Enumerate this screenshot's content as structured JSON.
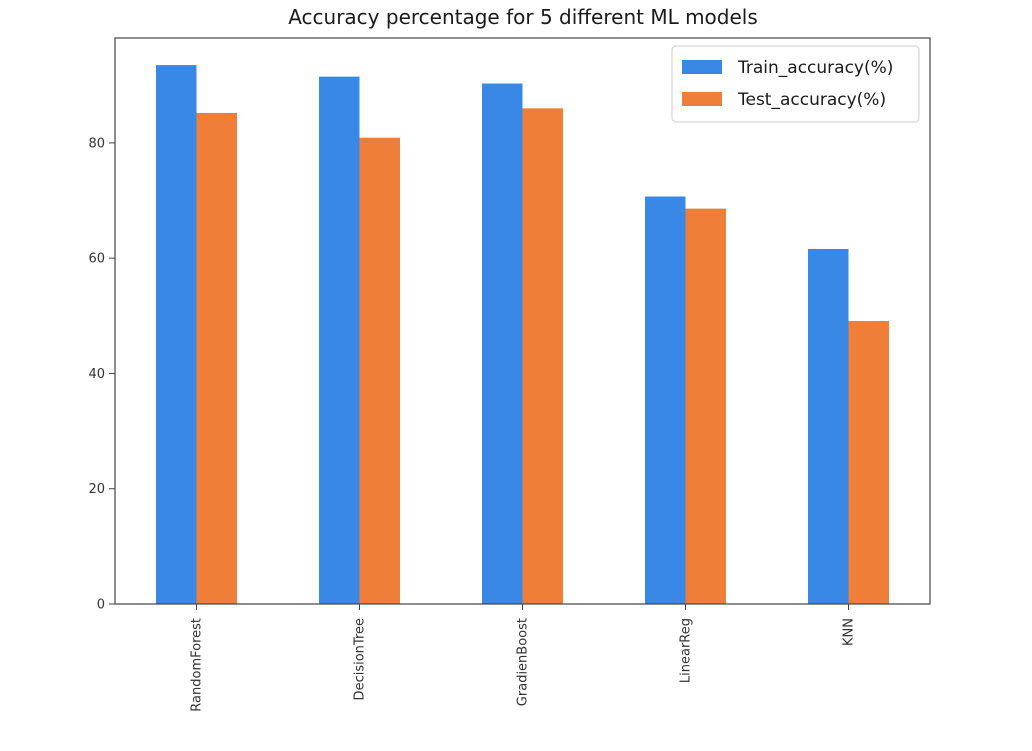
{
  "chart_data": {
    "type": "bar",
    "title": "Accuracy percentage for 5 different ML models",
    "xlabel": "",
    "ylabel": "",
    "categories": [
      "RandomForest",
      "DecisionTree",
      "GradienBoost",
      "LinearReg",
      "KNN"
    ],
    "series": [
      {
        "name": "Train_accuracy(%)",
        "color": "#3a88e6",
        "values": [
          93.5,
          91.5,
          90.3,
          70.7,
          61.6
        ]
      },
      {
        "name": "Test_accuracy(%)",
        "color": "#ef7f38",
        "values": [
          85.2,
          80.9,
          86.0,
          68.6,
          49.1
        ]
      }
    ],
    "ylim": [
      0,
      98.2
    ],
    "yticks": [
      0,
      20,
      40,
      60,
      80
    ],
    "grid": false,
    "legend_position": "top-right"
  }
}
